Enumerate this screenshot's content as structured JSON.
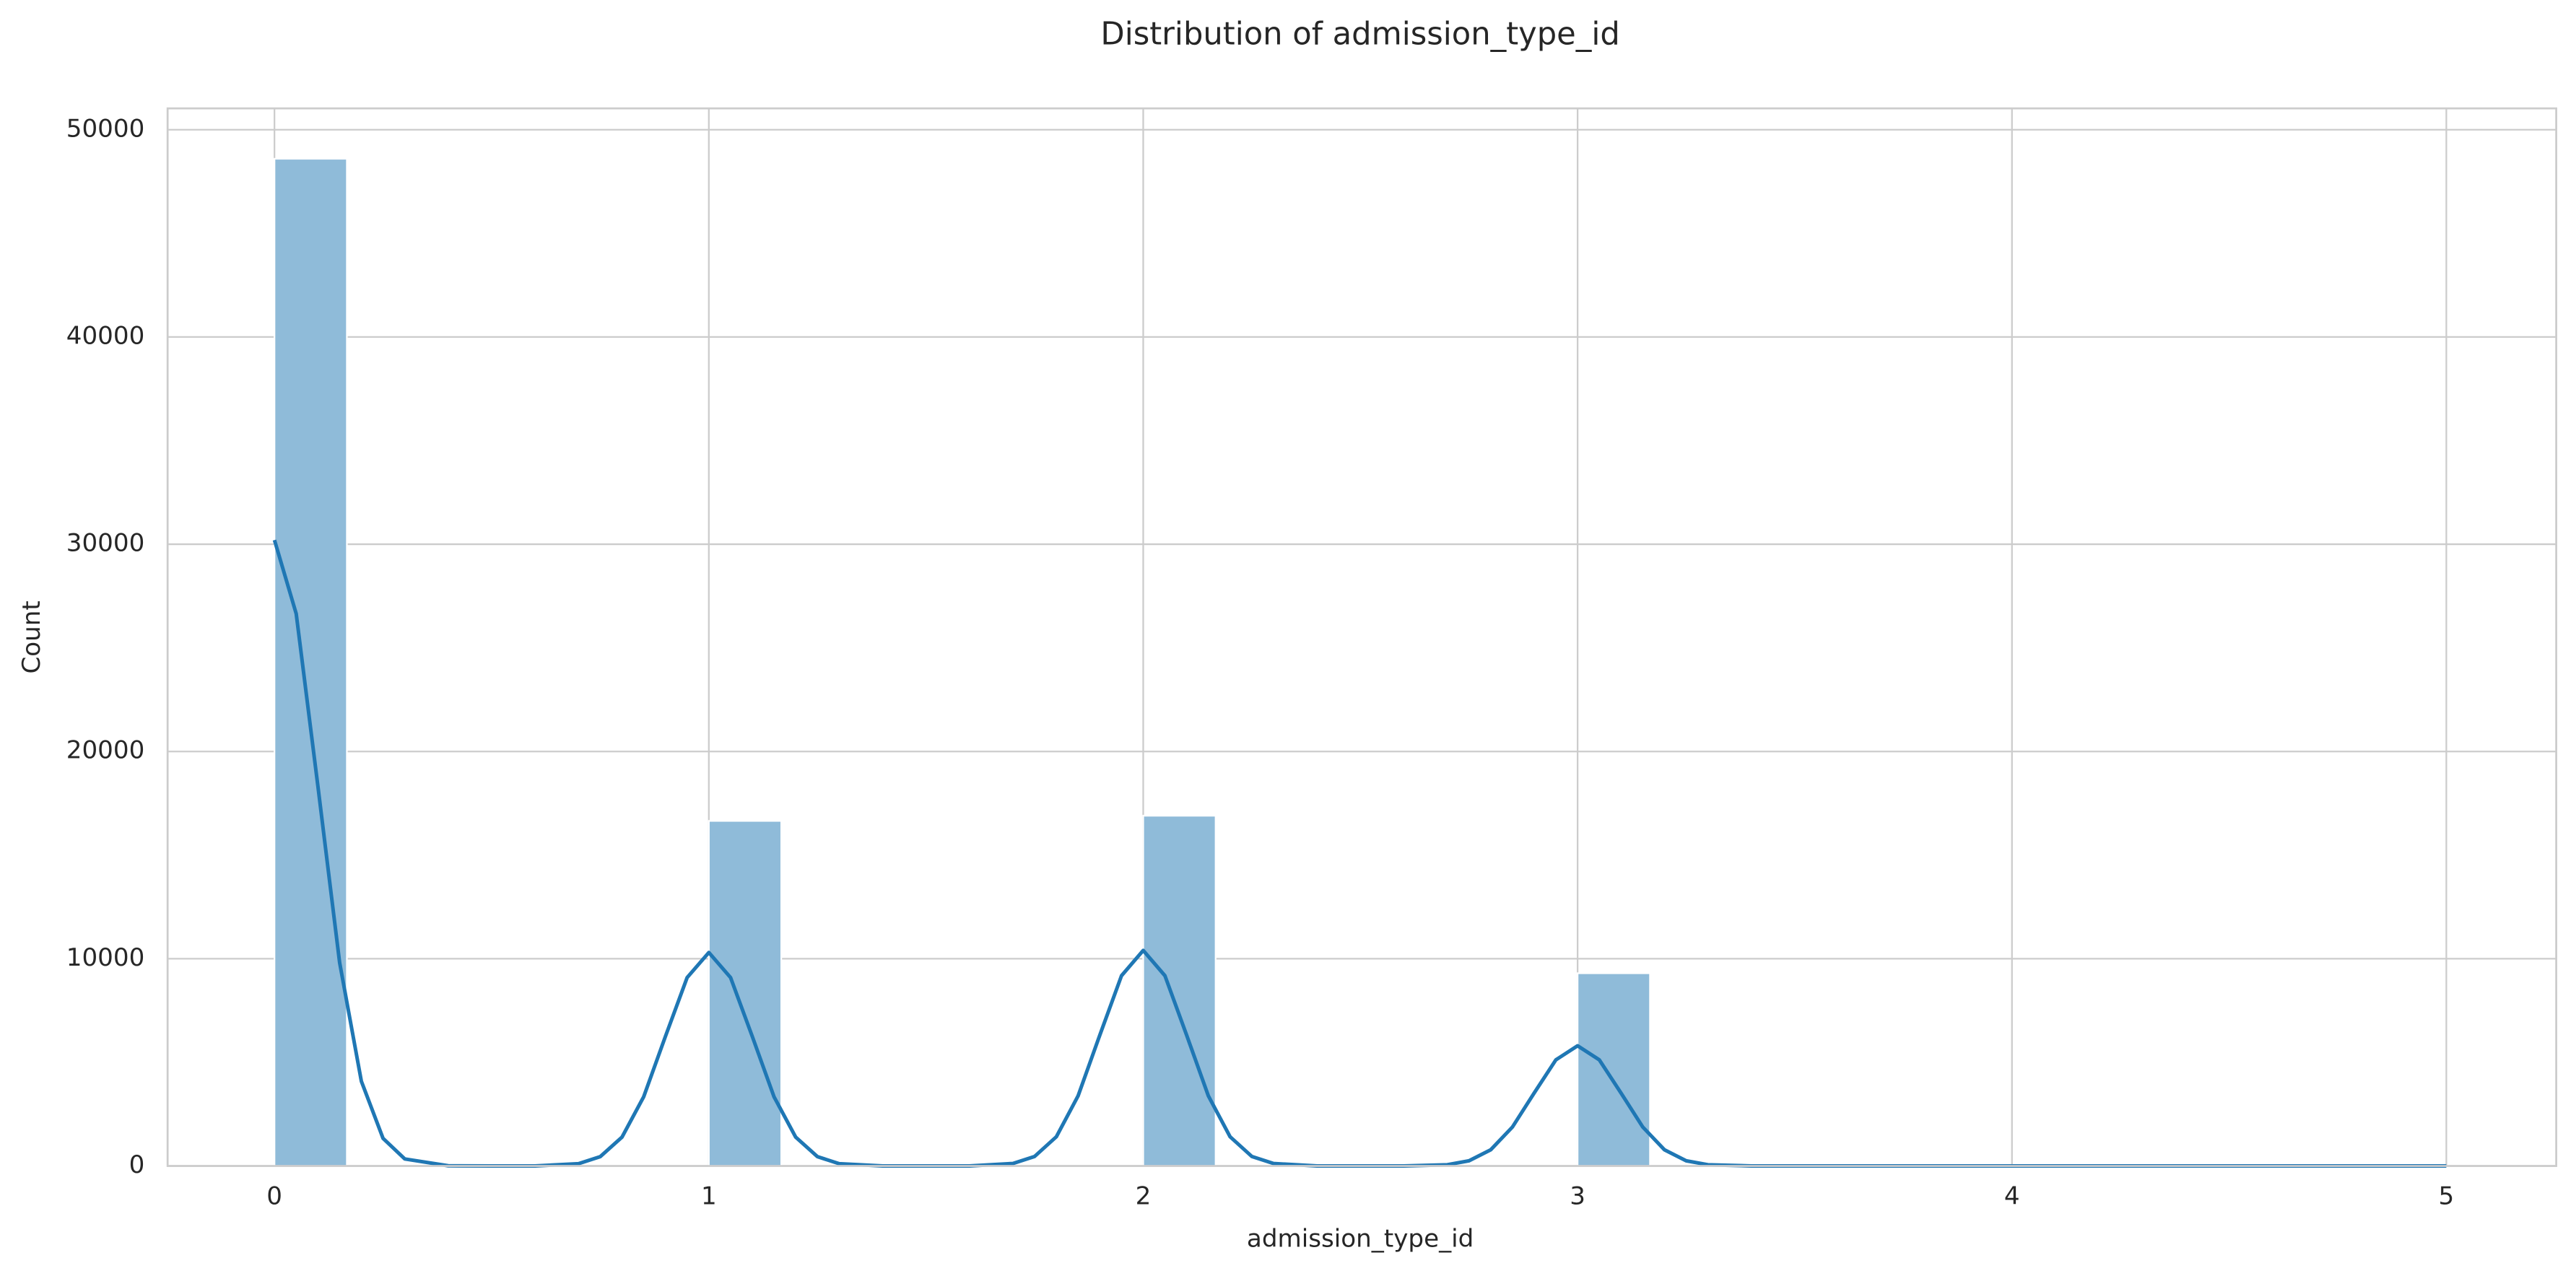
{
  "chart_data": {
    "type": "histogram",
    "title": "Distribution of admission_type_id",
    "xlabel": "admission_type_id",
    "ylabel": "Count",
    "bins": [
      0,
      0.1667,
      0.3333,
      0.5,
      0.6667,
      0.8333,
      1,
      1.1667,
      1.3333,
      1.5,
      1.6667,
      1.8333,
      2,
      2.1667,
      2.3333,
      2.5,
      2.6667,
      2.8333,
      3,
      3.1667,
      3.3333,
      3.5,
      3.6667,
      3.8333,
      4,
      4.1667,
      4.3333,
      4.5,
      4.6667,
      4.8333,
      5
    ],
    "values": [
      48600,
      0,
      0,
      0,
      0,
      0,
      16650,
      0,
      0,
      0,
      0,
      0,
      16900,
      0,
      0,
      0,
      0,
      0,
      9300,
      0,
      0,
      0,
      0,
      0,
      0,
      0,
      0,
      0,
      0,
      0
    ],
    "color": "#8fbbd9",
    "kde": {
      "color": "#1f77b4",
      "x": [
        0,
        0.05,
        0.1,
        0.15,
        0.2,
        0.25,
        0.3,
        0.4,
        0.5,
        0.6,
        0.7,
        0.75,
        0.8,
        0.85,
        0.9,
        0.95,
        1,
        1.05,
        1.1,
        1.15,
        1.2,
        1.25,
        1.3,
        1.4,
        1.5,
        1.6,
        1.7,
        1.75,
        1.8,
        1.85,
        1.9,
        1.95,
        2,
        2.05,
        2.1,
        2.15,
        2.2,
        2.25,
        2.3,
        2.4,
        2.5,
        2.6,
        2.7,
        2.75,
        2.8,
        2.85,
        2.9,
        2.95,
        3,
        3.05,
        3.1,
        3.15,
        3.2,
        3.25,
        3.3,
        3.4,
        3.5,
        4,
        4.5,
        5
      ],
      "values": [
        30200,
        26650,
        18320,
        9810,
        4090,
        1330,
        340,
        10,
        0,
        3,
        110,
        450,
        1390,
        3340,
        6250,
        9090,
        10300,
        9090,
        6250,
        3340,
        1390,
        450,
        110,
        3,
        0,
        3,
        120,
        460,
        1410,
        3380,
        6310,
        9180,
        10400,
        9180,
        6310,
        3380,
        1410,
        460,
        120,
        3,
        0,
        2,
        60,
        250,
        780,
        1880,
        3520,
        5120,
        5800,
        5120,
        3520,
        1880,
        780,
        250,
        60,
        2,
        0,
        0,
        0,
        0
      ]
    },
    "xlim": [
      -0.246,
      5.253
    ],
    "ylim": [
      0,
      51030
    ],
    "xticks": [
      0,
      1,
      2,
      3,
      4,
      5
    ],
    "yticks": [
      0,
      10000,
      20000,
      30000,
      40000,
      50000
    ],
    "grid": true
  }
}
